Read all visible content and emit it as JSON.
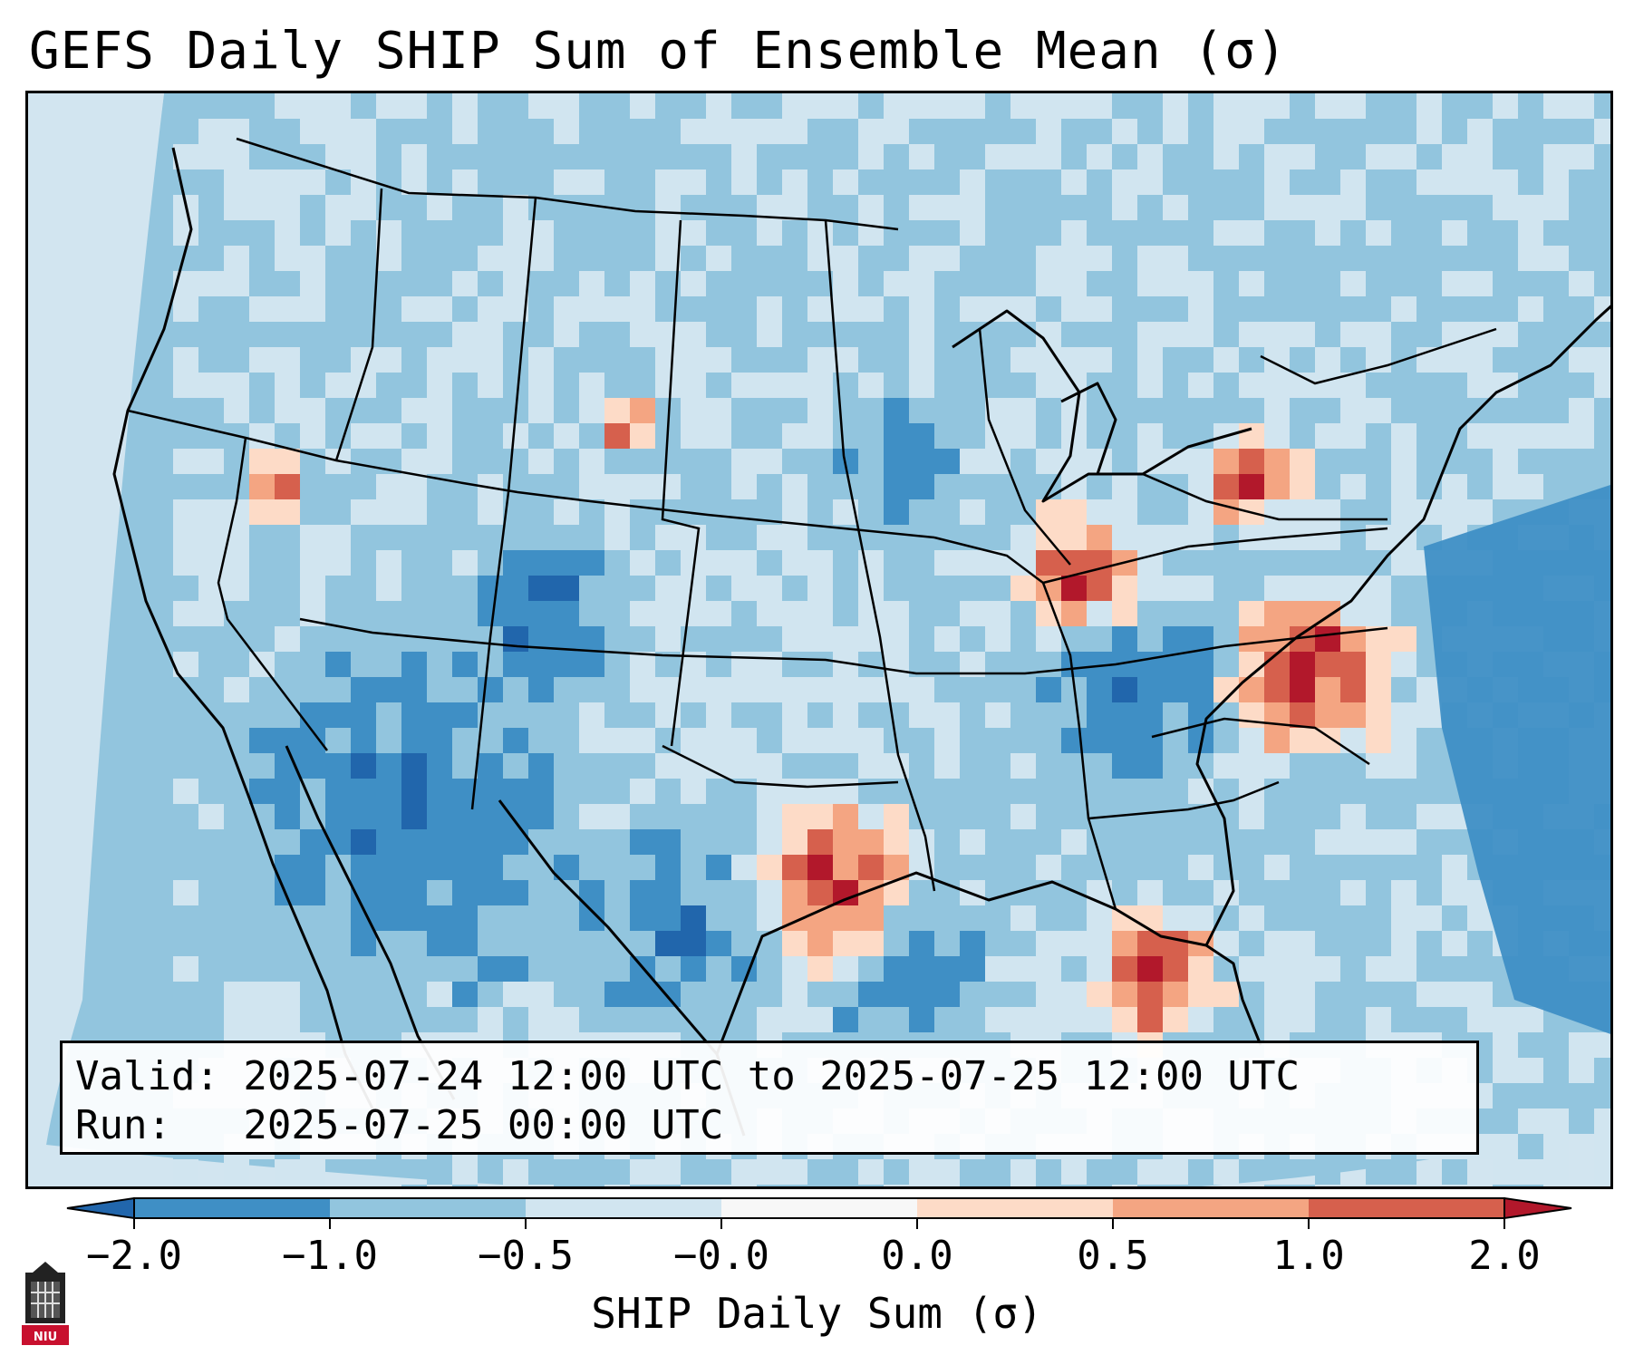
{
  "title": "GEFS Daily SHIP Sum of Ensemble Mean (σ)",
  "info": {
    "valid": "Valid: 2025-07-24 12:00 UTC to 2025-07-25 12:00 UTC",
    "run": "Run:   2025-07-25 00:00 UTC"
  },
  "colorbar": {
    "label": "SHIP Daily Sum (σ)",
    "ticks": [
      "−2.0",
      "−1.0",
      "−0.5",
      "−0.0",
      "0.0",
      "0.5",
      "1.0",
      "2.0"
    ],
    "colors": [
      "#3f8fc5",
      "#92c5de",
      "#d1e5f0",
      "#f7f7f7",
      "#fddbc7",
      "#f4a582",
      "#d6604d"
    ],
    "under_color": "#2166ac",
    "over_color": "#b2182b",
    "extend": "both"
  },
  "logo": {
    "text": "NIU",
    "color": "#c8102e"
  }
}
